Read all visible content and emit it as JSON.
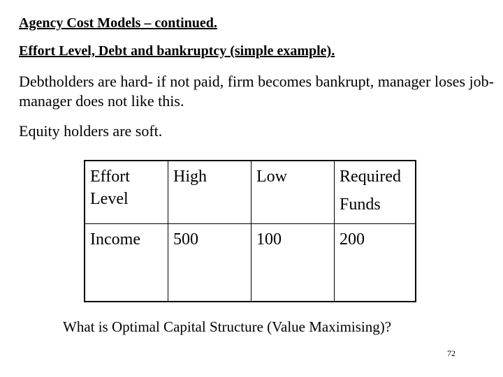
{
  "title": "Agency Cost Models – continued.",
  "subtitle": "Effort Level, Debt and bankruptcy (simple example).",
  "paragraphs": [
    "Debtholders are hard- if not paid, firm becomes bankrupt, manager loses job- manager does not like this.",
    "Equity holders are soft."
  ],
  "table": {
    "rows": [
      [
        "Effort Level",
        "High",
        "Low",
        "Required Funds"
      ],
      [
        "Income",
        "500",
        "100",
        "200"
      ]
    ]
  },
  "question": "What is Optimal Capital Structure (Value Maximising)?",
  "page_number": "72"
}
